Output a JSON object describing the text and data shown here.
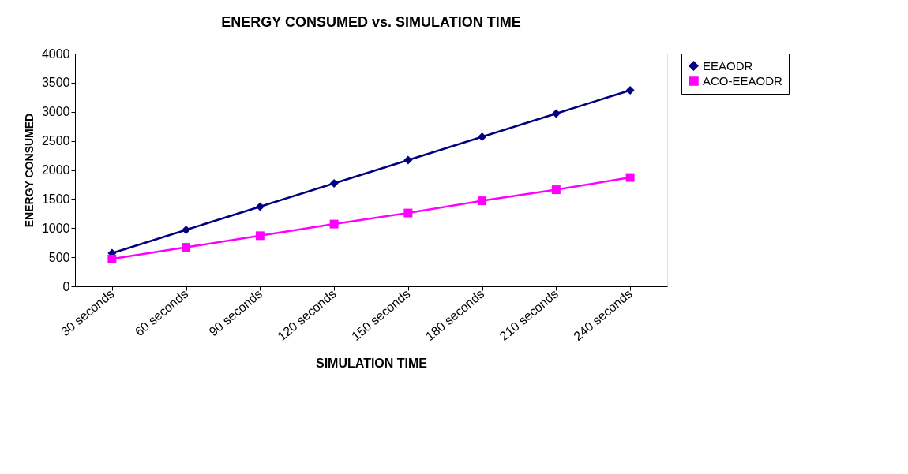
{
  "chart_data": {
    "type": "line",
    "title": "ENERGY CONSUMED vs. SIMULATION TIME",
    "xlabel": "SIMULATION TIME",
    "ylabel": "ENERGY CONSUMED",
    "categories": [
      "30 seconds",
      "60 seconds",
      "90 seconds",
      "120 seconds",
      "150 seconds",
      "180 seconds",
      "210 seconds",
      "240 seconds"
    ],
    "series": [
      {
        "name": "EEAODR",
        "color": "#000080",
        "marker": "diamond",
        "values": [
          570,
          970,
          1370,
          1770,
          2170,
          2570,
          2970,
          3370
        ]
      },
      {
        "name": "ACO-EEAODR",
        "color": "#ff00ff",
        "marker": "square",
        "values": [
          470,
          670,
          870,
          1070,
          1260,
          1470,
          1660,
          1870
        ]
      }
    ],
    "ylim": [
      0,
      4000
    ],
    "yticks": [
      0,
      500,
      1000,
      1500,
      2000,
      2500,
      3000,
      3500,
      4000
    ],
    "grid": false,
    "legend": "right",
    "line_style": "solid"
  }
}
